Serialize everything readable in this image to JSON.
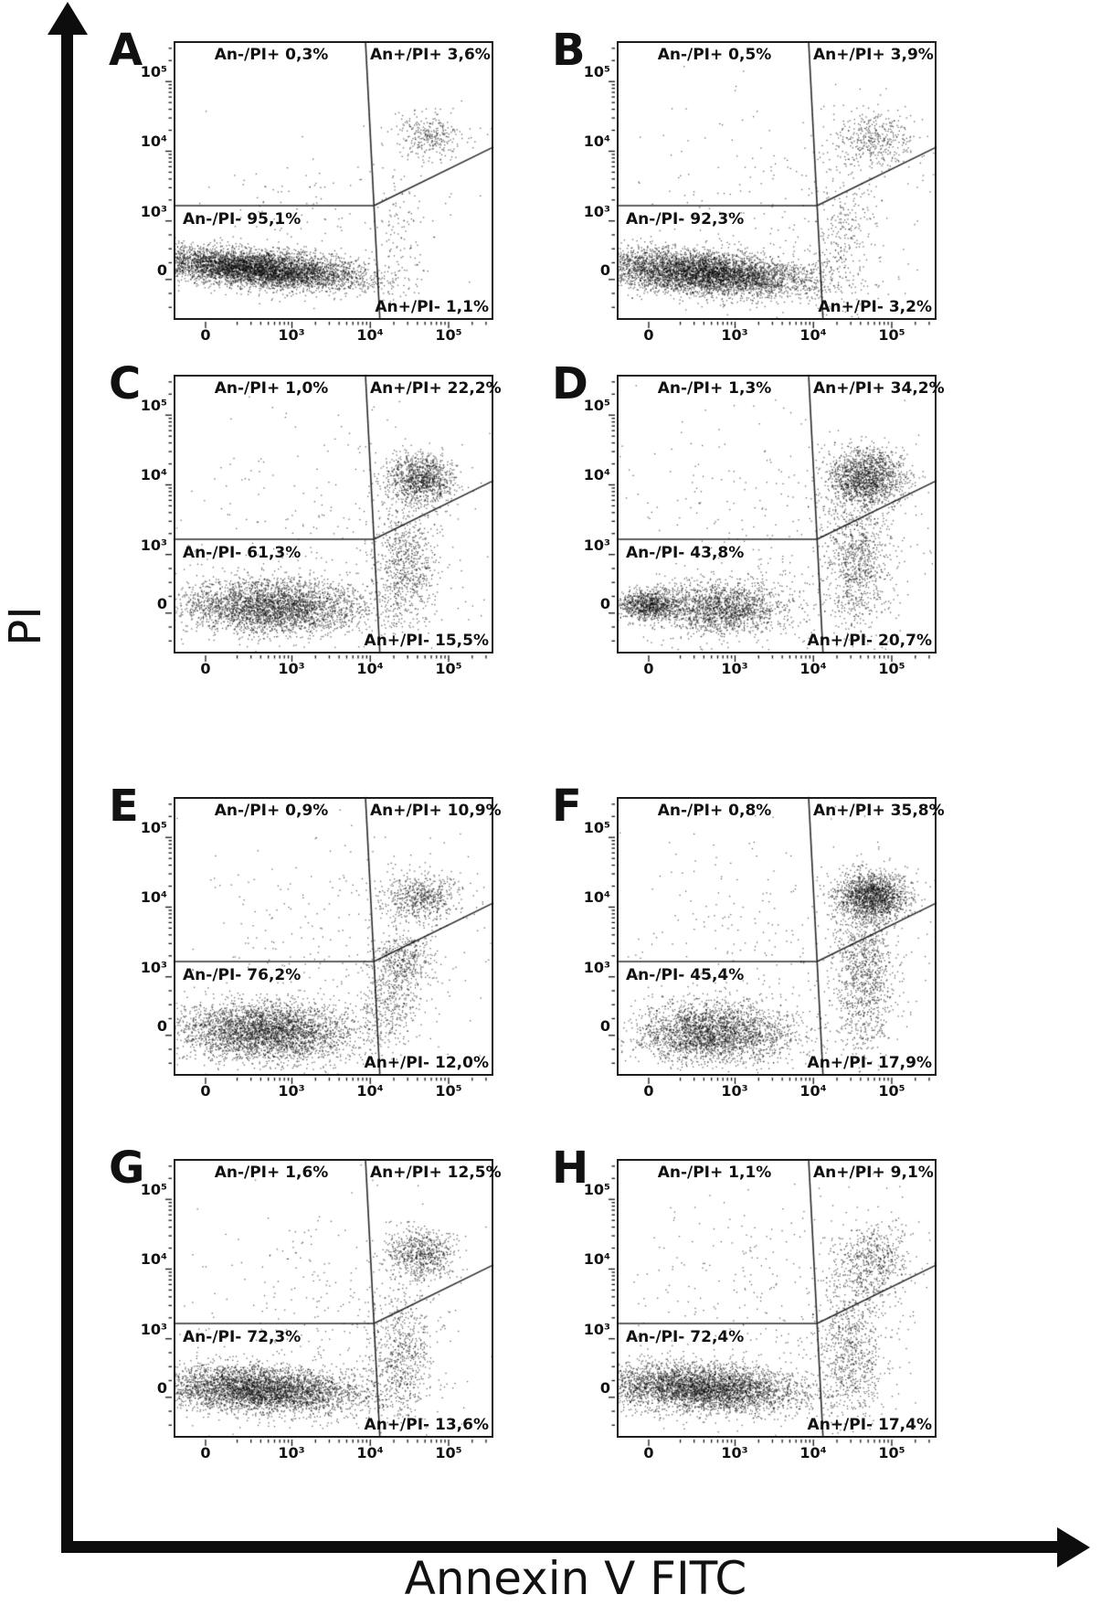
{
  "figure": {
    "x_axis_label": "Annexin V FITC",
    "y_axis_label": "PI"
  },
  "axes": {
    "x_ticks": [
      "0",
      "10³",
      "10⁴",
      "10⁵"
    ],
    "y_ticks": [
      "10⁵",
      "10⁴",
      "10³",
      "0"
    ]
  },
  "panels": [
    {
      "letter": "A",
      "q_ul": "An-/PI+ 0,3%",
      "q_ur": "An+/PI+ 3,6%",
      "q_ll": "An-/PI- 95,1%",
      "q_lr": "An+/PI- 1,1%"
    },
    {
      "letter": "B",
      "q_ul": "An-/PI+ 0,5%",
      "q_ur": "An+/PI+ 3,9%",
      "q_ll": "An-/PI- 92,3%",
      "q_lr": "An+/PI- 3,2%"
    },
    {
      "letter": "C",
      "q_ul": "An-/PI+ 1,0%",
      "q_ur": "An+/PI+ 22,2%",
      "q_ll": "An-/PI- 61,3%",
      "q_lr": "An+/PI- 15,5%"
    },
    {
      "letter": "D",
      "q_ul": "An-/PI+ 1,3%",
      "q_ur": "An+/PI+ 34,2%",
      "q_ll": "An-/PI- 43,8%",
      "q_lr": "An+/PI- 20,7%"
    },
    {
      "letter": "E",
      "q_ul": "An-/PI+ 0,9%",
      "q_ur": "An+/PI+ 10,9%",
      "q_ll": "An-/PI- 76,2%",
      "q_lr": "An+/PI- 12,0%"
    },
    {
      "letter": "F",
      "q_ul": "An-/PI+ 0,8%",
      "q_ur": "An+/PI+ 35,8%",
      "q_ll": "An-/PI- 45,4%",
      "q_lr": "An+/PI- 17,9%"
    },
    {
      "letter": "G",
      "q_ul": "An-/PI+ 1,6%",
      "q_ur": "An+/PI+ 12,5%",
      "q_ll": "An-/PI- 72,3%",
      "q_lr": "An+/PI- 13,6%"
    },
    {
      "letter": "H",
      "q_ul": "An-/PI+ 1,1%",
      "q_ur": "An+/PI+ 9,1%",
      "q_ll": "An-/PI- 72,4%",
      "q_lr": "An+/PI- 17,4%"
    }
  ],
  "chart_data": {
    "type": "scatter",
    "title": "Annexin V FITC / PI flow cytometry dot plots (panels A–H)",
    "xlabel": "Annexin V FITC",
    "ylabel": "PI",
    "x_tick_labels": [
      "0",
      "10^3",
      "10^4",
      "10^5"
    ],
    "y_tick_labels": [
      "10^5",
      "10^4",
      "10^3",
      "0"
    ],
    "legend_position": "none",
    "grid": false,
    "panels": [
      {
        "panel": "A",
        "quadrant_percentages": {
          "An-/PI+": 0.3,
          "An+/PI+": 3.6,
          "An-/PI-": 95.1,
          "An+/PI-": 1.1
        },
        "clusters": [
          [
            5200,
            0.26,
            0.185,
            0.17,
            0.032,
            -0.1
          ],
          [
            300,
            0.8,
            0.66,
            0.055,
            0.04,
            0
          ],
          [
            90,
            0.7,
            0.33,
            0.035,
            0.12,
            0
          ],
          [
            150,
            0.45,
            0.35,
            0.25,
            0.15,
            0
          ]
        ]
      },
      {
        "panel": "B",
        "quadrant_percentages": {
          "An-/PI+": 0.5,
          "An+/PI+": 3.9,
          "An-/PI-": 92.3,
          "An+/PI-": 3.2
        },
        "clusters": [
          [
            5000,
            0.27,
            0.17,
            0.17,
            0.038,
            -0.08
          ],
          [
            380,
            0.8,
            0.655,
            0.06,
            0.055,
            0
          ],
          [
            280,
            0.71,
            0.3,
            0.045,
            0.15,
            0
          ],
          [
            220,
            0.5,
            0.42,
            0.27,
            0.22,
            0
          ]
        ]
      },
      {
        "panel": "C",
        "quadrant_percentages": {
          "An-/PI+": 1.0,
          "An+/PI+": 22.2,
          "An-/PI-": 61.3,
          "An+/PI-": 15.5
        },
        "clusters": [
          [
            3200,
            0.3,
            0.17,
            0.15,
            0.048,
            -0.02
          ],
          [
            1050,
            0.77,
            0.63,
            0.055,
            0.045,
            0
          ],
          [
            750,
            0.72,
            0.32,
            0.05,
            0.11,
            0
          ],
          [
            260,
            0.5,
            0.45,
            0.26,
            0.22,
            0
          ]
        ]
      },
      {
        "panel": "D",
        "quadrant_percentages": {
          "An-/PI+": 1.3,
          "An+/PI+": 34.2,
          "An-/PI-": 43.8,
          "An+/PI-": 20.7
        },
        "clusters": [
          [
            950,
            0.1,
            0.175,
            0.05,
            0.028,
            0
          ],
          [
            1700,
            0.33,
            0.165,
            0.1,
            0.048,
            0
          ],
          [
            1500,
            0.78,
            0.635,
            0.06,
            0.05,
            0
          ],
          [
            950,
            0.75,
            0.33,
            0.05,
            0.13,
            0
          ],
          [
            320,
            0.5,
            0.45,
            0.27,
            0.22,
            0
          ]
        ]
      },
      {
        "panel": "E",
        "quadrant_percentages": {
          "An-/PI+": 0.9,
          "An+/PI+": 10.9,
          "An-/PI-": 76.2,
          "An+/PI-": 12.0
        },
        "clusters": [
          [
            3400,
            0.29,
            0.16,
            0.14,
            0.052,
            -0.03
          ],
          [
            620,
            0.77,
            0.64,
            0.06,
            0.045,
            0
          ],
          [
            380,
            0.72,
            0.42,
            0.05,
            0.05,
            0
          ],
          [
            380,
            0.68,
            0.27,
            0.045,
            0.085,
            0
          ],
          [
            300,
            0.5,
            0.45,
            0.26,
            0.22,
            0
          ]
        ]
      },
      {
        "panel": "F",
        "quadrant_percentages": {
          "An-/PI+": 0.8,
          "An+/PI+": 35.8,
          "An-/PI-": 45.4,
          "An+/PI-": 17.9
        },
        "clusters": [
          [
            2600,
            0.3,
            0.155,
            0.12,
            0.052,
            0
          ],
          [
            1600,
            0.8,
            0.645,
            0.055,
            0.042,
            0
          ],
          [
            1100,
            0.77,
            0.37,
            0.05,
            0.15,
            0
          ],
          [
            320,
            0.5,
            0.45,
            0.26,
            0.22,
            0
          ]
        ]
      },
      {
        "panel": "G",
        "quadrant_percentages": {
          "An-/PI+": 1.6,
          "An+/PI+": 12.5,
          "An-/PI-": 72.3,
          "An+/PI-": 13.6
        },
        "clusters": [
          [
            4000,
            0.27,
            0.175,
            0.16,
            0.042,
            -0.05
          ],
          [
            680,
            0.77,
            0.66,
            0.055,
            0.045,
            0
          ],
          [
            650,
            0.71,
            0.3,
            0.05,
            0.12,
            0
          ],
          [
            320,
            0.5,
            0.45,
            0.26,
            0.22,
            0
          ]
        ]
      },
      {
        "panel": "H",
        "quadrant_percentages": {
          "An-/PI+": 1.1,
          "An+/PI+": 9.1,
          "An-/PI-": 72.4,
          "An+/PI-": 17.4
        },
        "clusters": [
          [
            4000,
            0.26,
            0.18,
            0.16,
            0.042,
            -0.05
          ],
          [
            580,
            0.8,
            0.63,
            0.06,
            0.07,
            0
          ],
          [
            750,
            0.73,
            0.31,
            0.05,
            0.13,
            0
          ],
          [
            380,
            0.5,
            0.46,
            0.28,
            0.24,
            0
          ]
        ]
      }
    ]
  }
}
